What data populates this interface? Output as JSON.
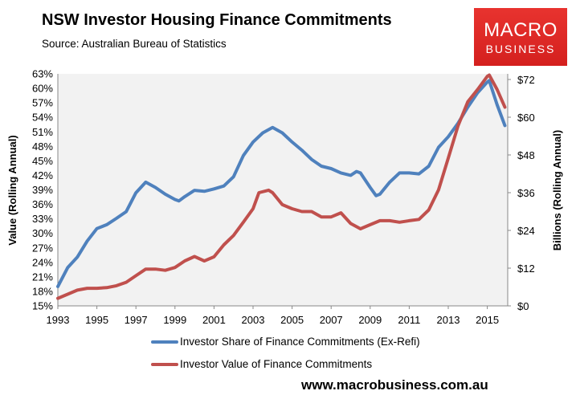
{
  "header": {
    "title": "NSW Investor Housing Finance Commitments",
    "subtitle": "Source: Australian Bureau of Statistics",
    "logo_line1": "MACRO",
    "logo_line2": "BUSINESS"
  },
  "footer": {
    "url": "www.macrobusiness.com.au"
  },
  "colors": {
    "share": "#4f81bd",
    "value": "#c0504d",
    "plot_bg": "#f2f2f2",
    "logo": "#e02b28"
  },
  "chart_data": {
    "type": "line",
    "title": "NSW Investor Housing Finance Commitments",
    "xlabel": "",
    "ylabel": "Value (Rolling Annual)",
    "y2label": "Billions (Rolling Annual)",
    "xlim": [
      1993,
      2016.1
    ],
    "ylim": [
      15,
      63
    ],
    "y2lim": [
      0,
      72
    ],
    "xticks": [
      "1993",
      "1995",
      "1997",
      "1999",
      "2001",
      "2003",
      "2005",
      "2007",
      "2009",
      "2011",
      "2013",
      "2015"
    ],
    "yticks": [
      "15%",
      "18%",
      "21%",
      "24%",
      "27%",
      "30%",
      "33%",
      "36%",
      "39%",
      "42%",
      "45%",
      "48%",
      "51%",
      "54%",
      "57%",
      "60%",
      "63%"
    ],
    "y2ticks": [
      "$0",
      "$12",
      "$24",
      "$36",
      "$48",
      "$60",
      "$72"
    ],
    "legend_position": "bottom",
    "series": [
      {
        "name": "Investor Share of Finance Commitments (Ex-Refi)",
        "axis": "left",
        "unit": "%",
        "x": [
          1993,
          1993.5,
          1994,
          1994.5,
          1995,
          1995.5,
          1996,
          1996.5,
          1997,
          1997.5,
          1998,
          1998.5,
          1999,
          1999.2,
          1999.5,
          2000,
          2000.5,
          2001,
          2001.5,
          2002,
          2002.5,
          2003,
          2003.5,
          2004,
          2004.5,
          2005,
          2005.5,
          2006,
          2006.5,
          2007,
          2007.5,
          2008,
          2008.3,
          2008.5,
          2009,
          2009.3,
          2009.5,
          2010,
          2010.5,
          2011,
          2011.5,
          2012,
          2012.5,
          2013,
          2013.5,
          2014,
          2014.5,
          2015,
          2015.1,
          2015.5,
          2015.9
        ],
        "y": [
          19.0,
          22.9,
          25.1,
          28.4,
          31.0,
          31.8,
          33.1,
          34.5,
          38.4,
          40.6,
          39.5,
          38.1,
          37.0,
          36.7,
          37.6,
          38.9,
          38.7,
          39.2,
          39.8,
          41.7,
          46.1,
          48.9,
          50.8,
          51.9,
          50.8,
          48.9,
          47.2,
          45.3,
          43.9,
          43.4,
          42.5,
          42.0,
          42.8,
          42.5,
          39.5,
          37.8,
          38.1,
          40.6,
          42.5,
          42.5,
          42.3,
          43.9,
          47.8,
          50.0,
          52.8,
          56.1,
          59.1,
          61.3,
          61.6,
          56.6,
          52.3
        ]
      },
      {
        "name": "Investor Value of Finance Commitments",
        "axis": "right",
        "unit": "$bn",
        "x": [
          1993,
          1993.5,
          1994,
          1994.5,
          1995,
          1995.5,
          1996,
          1996.5,
          1997,
          1997.5,
          1998,
          1998.5,
          1999,
          1999.5,
          2000,
          2000.5,
          2001,
          2001.5,
          2002,
          2002.5,
          2003,
          2003.3,
          2003.8,
          2004,
          2004.5,
          2005,
          2005.5,
          2006,
          2006.5,
          2007,
          2007.5,
          2008,
          2008.5,
          2009,
          2009.5,
          2010,
          2010.5,
          2011,
          2011.5,
          2012,
          2012.5,
          2013,
          2013.5,
          2014,
          2014.5,
          2015,
          2015.1,
          2015.5,
          2015.9
        ],
        "y": [
          2.4,
          3.7,
          5.0,
          5.6,
          5.6,
          5.8,
          6.4,
          7.5,
          9.6,
          11.7,
          11.7,
          11.3,
          12.2,
          14.3,
          15.7,
          14.3,
          15.6,
          19.4,
          22.4,
          26.6,
          30.9,
          36.0,
          36.8,
          36.0,
          32.2,
          30.9,
          30.0,
          30.0,
          28.3,
          28.3,
          29.6,
          26.2,
          24.5,
          25.8,
          27.1,
          27.1,
          26.6,
          27.1,
          27.5,
          30.5,
          36.9,
          47.0,
          57.3,
          64.9,
          68.8,
          73.0,
          73.4,
          68.8,
          63.2
        ]
      }
    ]
  }
}
